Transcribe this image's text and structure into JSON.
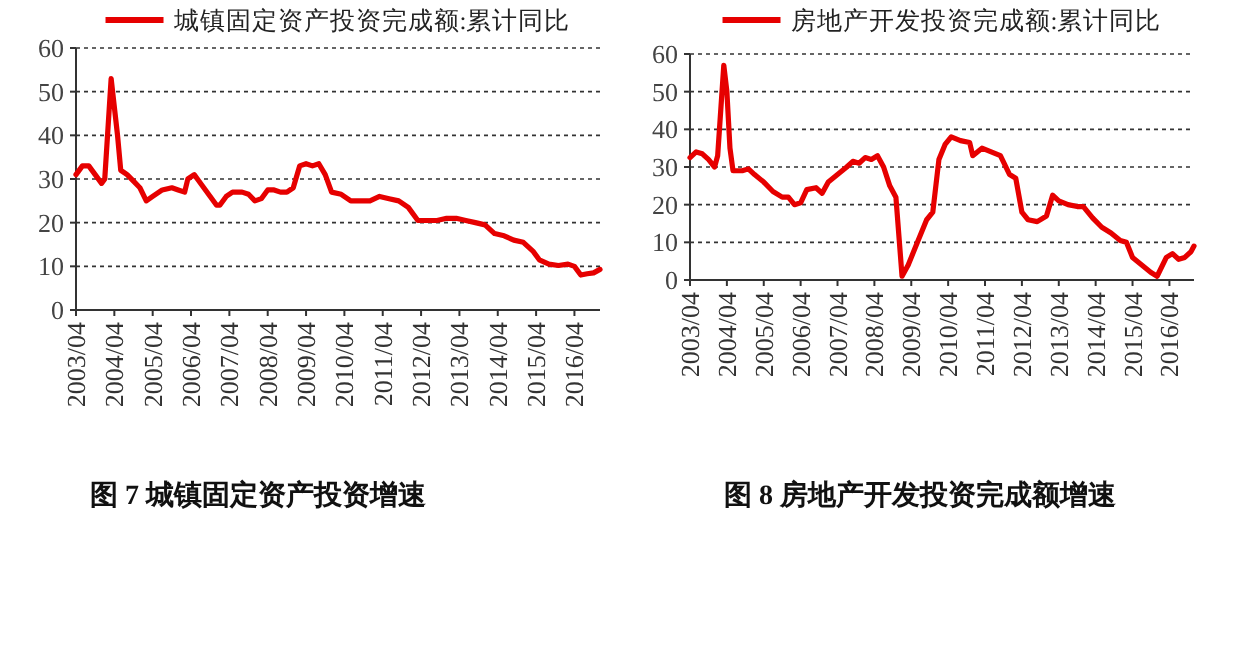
{
  "chart_data": [
    {
      "type": "line",
      "title": "图 7 城镇固定资产投资增速",
      "grid": "y",
      "legend": "top",
      "line_style": "solid",
      "xlim": [
        "2003-04",
        "2016-12"
      ],
      "ylim": [
        0,
        60
      ],
      "yticks": [
        0,
        10,
        20,
        30,
        40,
        50,
        60
      ],
      "xticks": [
        {
          "value": "2003-04",
          "label": "2003/04"
        },
        {
          "value": "2004-04",
          "label": "2004/04"
        },
        {
          "value": "2005-04",
          "label": "2005/04"
        },
        {
          "value": "2006-04",
          "label": "2006/04"
        },
        {
          "value": "2007-04",
          "label": "2007/04"
        },
        {
          "value": "2008-04",
          "label": "2008/04"
        },
        {
          "value": "2009-04",
          "label": "2009/04"
        },
        {
          "value": "2010-04",
          "label": "2010/04"
        },
        {
          "value": "2011-04",
          "label": "2011/04"
        },
        {
          "value": "2012-04",
          "label": "2012/04"
        },
        {
          "value": "2013-04",
          "label": "2013/04"
        },
        {
          "value": "2014-04",
          "label": "2014/04"
        },
        {
          "value": "2015-04",
          "label": "2015/04"
        },
        {
          "value": "2016-04",
          "label": "2016/04"
        }
      ],
      "x": [
        "2003-04",
        "2003-06",
        "2003-08",
        "2003-10",
        "2003-12",
        "2004-01",
        "2004-03",
        "2004-05",
        "2004-06",
        "2004-08",
        "2004-10",
        "2004-12",
        "2005-02",
        "2005-04",
        "2005-07",
        "2005-10",
        "2005-12",
        "2006-02",
        "2006-03",
        "2006-05",
        "2006-06",
        "2006-08",
        "2006-10",
        "2006-12",
        "2007-01",
        "2007-03",
        "2007-05",
        "2007-08",
        "2007-10",
        "2007-12",
        "2008-02",
        "2008-04",
        "2008-06",
        "2008-08",
        "2008-10",
        "2008-12",
        "2009-02",
        "2009-04",
        "2009-06",
        "2009-08",
        "2009-10",
        "2009-12",
        "2010-03",
        "2010-06",
        "2010-09",
        "2010-12",
        "2011-03",
        "2011-06",
        "2011-09",
        "2011-12",
        "2012-03",
        "2012-06",
        "2012-09",
        "2012-12",
        "2013-03",
        "2013-06",
        "2013-09",
        "2013-12",
        "2014-03",
        "2014-06",
        "2014-09",
        "2014-12",
        "2015-03",
        "2015-05",
        "2015-08",
        "2015-11",
        "2016-02",
        "2016-04",
        "2016-06",
        "2016-08",
        "2016-10",
        "2016-12"
      ],
      "series": [
        {
          "name": "城镇固定资产投资完成额:累计同比",
          "color": "#e60000",
          "values": [
            31,
            33,
            33,
            31,
            29,
            30,
            53,
            40,
            32,
            31,
            29.5,
            28,
            25,
            26,
            27.5,
            28,
            27.5,
            27,
            30,
            31,
            30,
            28,
            26,
            24,
            24,
            26,
            27,
            27,
            26.5,
            25,
            25.5,
            27.5,
            27.5,
            27,
            27,
            28,
            33,
            33.5,
            33,
            33.5,
            31,
            27,
            26.5,
            25,
            25,
            25,
            26,
            25.5,
            25,
            23.5,
            20.5,
            20.5,
            20.5,
            21,
            21,
            20.5,
            20,
            19.5,
            17.5,
            17,
            16,
            15.5,
            13.5,
            11.5,
            10.5,
            10.2,
            10.5,
            10,
            8,
            8.3,
            8.5,
            9.3
          ]
        }
      ]
    },
    {
      "type": "line",
      "title": "图 8 房地产开发投资完成额增速",
      "grid": "y",
      "legend": "top",
      "line_style": "solid",
      "xlim": [
        "2003-04",
        "2016-12"
      ],
      "ylim": [
        0,
        60
      ],
      "yticks": [
        0,
        10,
        20,
        30,
        40,
        50,
        60
      ],
      "xticks": [
        {
          "value": "2003-04",
          "label": "2003/04"
        },
        {
          "value": "2004-04",
          "label": "2004/04"
        },
        {
          "value": "2005-04",
          "label": "2005/04"
        },
        {
          "value": "2006-04",
          "label": "2006/04"
        },
        {
          "value": "2007-04",
          "label": "2007/04"
        },
        {
          "value": "2008-04",
          "label": "2008/04"
        },
        {
          "value": "2009-04",
          "label": "2009/04"
        },
        {
          "value": "2010-04",
          "label": "2010/04"
        },
        {
          "value": "2011-04",
          "label": "2011/04"
        },
        {
          "value": "2012-04",
          "label": "2012/04"
        },
        {
          "value": "2013-04",
          "label": "2013/04"
        },
        {
          "value": "2014-04",
          "label": "2014/04"
        },
        {
          "value": "2015-04",
          "label": "2015/04"
        },
        {
          "value": "2016-04",
          "label": "2016/04"
        }
      ],
      "x": [
        "2003-04",
        "2003-06",
        "2003-08",
        "2003-10",
        "2003-12",
        "2004-01",
        "2004-03",
        "2004-04",
        "2004-05",
        "2004-06",
        "2004-09",
        "2004-11",
        "2005-01",
        "2005-04",
        "2005-07",
        "2005-10",
        "2005-12",
        "2006-02",
        "2006-04",
        "2006-06",
        "2006-09",
        "2006-11",
        "2007-01",
        "2007-04",
        "2007-07",
        "2007-09",
        "2007-11",
        "2008-01",
        "2008-03",
        "2008-05",
        "2008-07",
        "2008-09",
        "2008-11",
        "2009-01",
        "2009-03",
        "2009-06",
        "2009-09",
        "2009-11",
        "2010-01",
        "2010-03",
        "2010-05",
        "2010-08",
        "2010-11",
        "2010-12",
        "2011-03",
        "2011-06",
        "2011-09",
        "2011-12",
        "2012-02",
        "2012-04",
        "2012-06",
        "2012-09",
        "2012-12",
        "2013-02",
        "2013-04",
        "2013-07",
        "2013-10",
        "2013-12",
        "2014-03",
        "2014-06",
        "2014-09",
        "2014-12",
        "2015-02",
        "2015-04",
        "2015-07",
        "2015-10",
        "2015-12",
        "2016-03",
        "2016-05",
        "2016-07",
        "2016-09",
        "2016-11",
        "2016-12"
      ],
      "series": [
        {
          "name": "房地产开发投资完成额:累计同比",
          "color": "#e60000",
          "values": [
            32.5,
            34,
            33.5,
            32,
            30,
            33,
            57,
            50,
            35,
            29,
            29,
            29.5,
            28,
            26,
            23.5,
            22,
            22,
            20,
            20.5,
            24,
            24.5,
            23,
            26,
            28,
            30,
            31.5,
            31,
            32.5,
            32,
            33,
            30,
            25,
            22,
            1,
            4,
            10,
            16,
            18,
            32,
            36,
            38,
            37,
            36.5,
            33,
            35,
            34,
            33,
            28,
            27,
            18,
            16,
            15.5,
            17,
            22.5,
            21,
            20,
            19.5,
            19.5,
            16.5,
            14,
            12.5,
            10.5,
            10,
            6,
            4,
            2,
            1,
            6,
            7,
            5.5,
            6,
            7.5,
            9
          ]
        }
      ]
    }
  ]
}
